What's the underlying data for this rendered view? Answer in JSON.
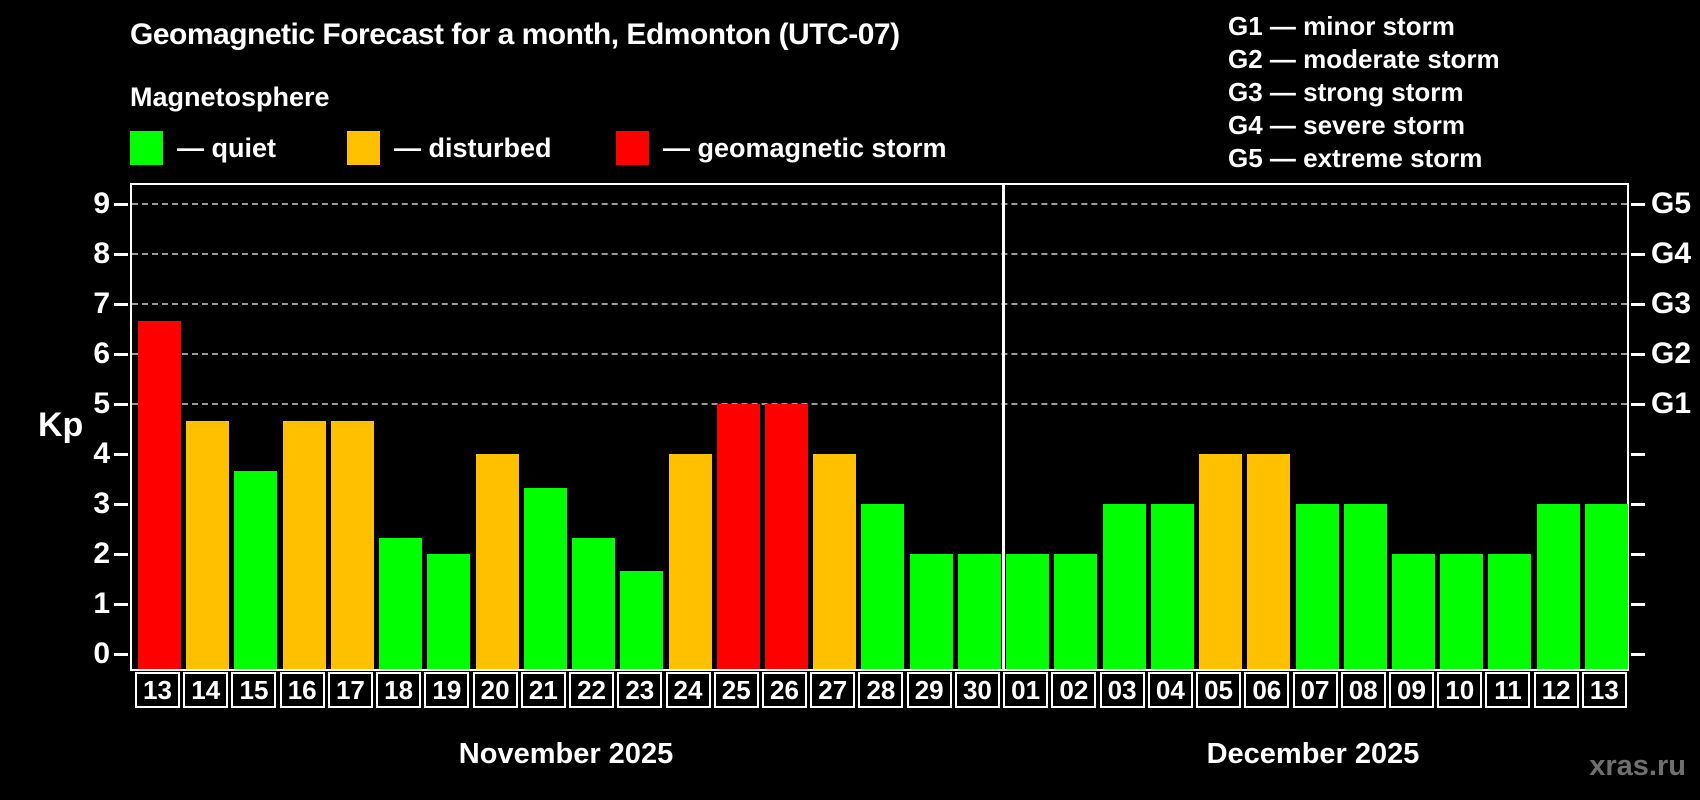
{
  "title": "Geomagnetic Forecast for a month, Edmonton (UTC-07)",
  "subtitle": "Magnetosphere",
  "legend": {
    "items": [
      {
        "label": "— quiet",
        "status": "quiet"
      },
      {
        "label": "— disturbed",
        "status": "disturbed"
      },
      {
        "label": "— geomagnetic storm",
        "status": "storm"
      }
    ]
  },
  "g_legend": [
    "G1 — minor storm",
    "G2 — moderate storm",
    "G3 — strong storm",
    "G4 — severe storm",
    "G5 — extreme storm"
  ],
  "watermark": "xras.ru",
  "chart_data": {
    "type": "bar",
    "title": "Geomagnetic Forecast for a month, Edmonton (UTC-07)",
    "ylabel": "Kp",
    "ylim": [
      0,
      9.4
    ],
    "yticks": [
      0,
      1,
      2,
      3,
      4,
      5,
      6,
      7,
      8,
      9
    ],
    "gridlines_at": [
      5,
      6,
      7,
      8,
      9
    ],
    "grid_color": "#9a9a9a",
    "g_levels": [
      {
        "label": "G1",
        "kp": 5
      },
      {
        "label": "G2",
        "kp": 6
      },
      {
        "label": "G3",
        "kp": 7
      },
      {
        "label": "G4",
        "kp": 8
      },
      {
        "label": "G5",
        "kp": 9
      }
    ],
    "colors": {
      "quiet": "#00ff00",
      "disturbed": "#ffc000",
      "storm": "#ff0000"
    },
    "months": [
      {
        "label": "November 2025",
        "days": 18
      },
      {
        "label": "December 2025",
        "days": 13
      }
    ],
    "categories": [
      "13",
      "14",
      "15",
      "16",
      "17",
      "18",
      "19",
      "20",
      "21",
      "22",
      "23",
      "24",
      "25",
      "26",
      "27",
      "28",
      "29",
      "30",
      "01",
      "02",
      "03",
      "04",
      "05",
      "06",
      "07",
      "08",
      "09",
      "10",
      "11",
      "12",
      "13"
    ],
    "values": [
      6.67,
      4.67,
      3.67,
      4.67,
      4.67,
      2.33,
      2,
      4,
      3.33,
      2.33,
      1.67,
      4,
      5,
      5,
      4,
      3,
      2,
      2,
      2,
      2,
      3,
      3,
      4,
      4,
      3,
      3,
      2,
      2,
      2,
      3,
      3
    ],
    "statuses": [
      "storm",
      "disturbed",
      "quiet",
      "disturbed",
      "disturbed",
      "quiet",
      "quiet",
      "disturbed",
      "quiet",
      "quiet",
      "quiet",
      "disturbed",
      "storm",
      "storm",
      "disturbed",
      "quiet",
      "quiet",
      "quiet",
      "quiet",
      "quiet",
      "quiet",
      "quiet",
      "disturbed",
      "disturbed",
      "quiet",
      "quiet",
      "quiet",
      "quiet",
      "quiet",
      "quiet",
      "quiet"
    ]
  }
}
